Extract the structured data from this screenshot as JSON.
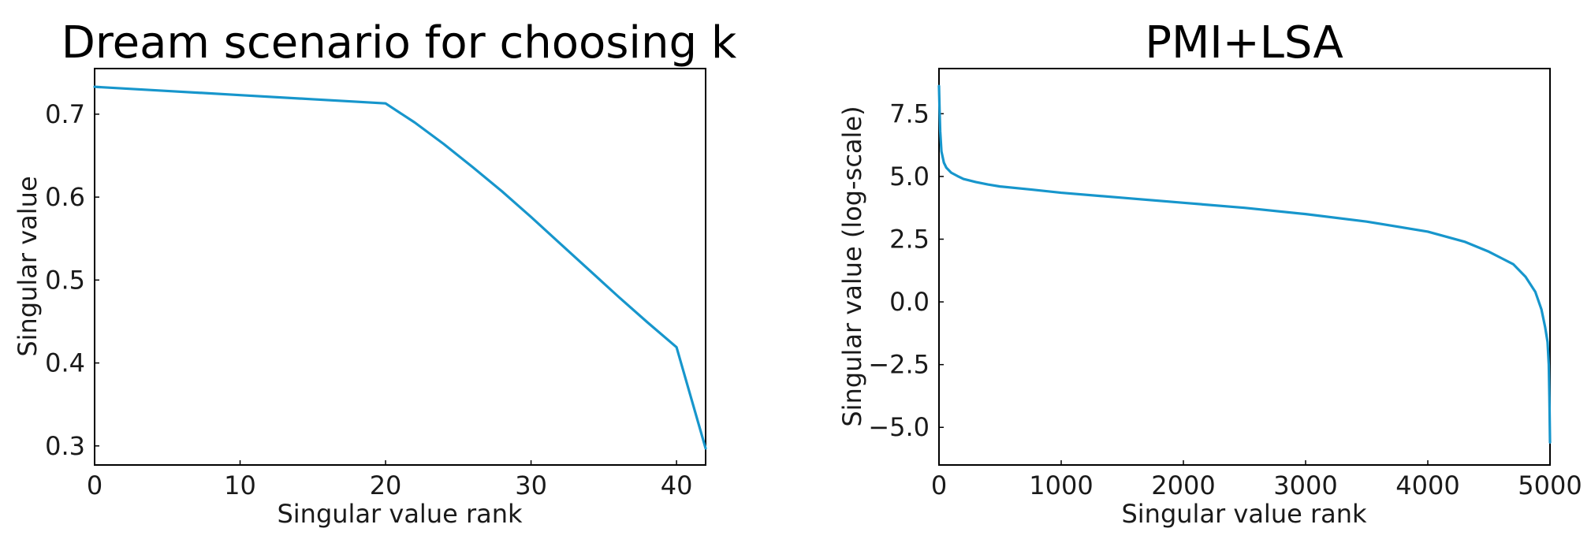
{
  "chart_data": [
    {
      "type": "line",
      "title": "Dream scenario for choosing k",
      "xlabel": "Singular value rank",
      "ylabel": "Singular value",
      "xlim": [
        0,
        42
      ],
      "ylim": [
        0.277,
        0.755
      ],
      "xticks": [
        0,
        10,
        20,
        30,
        40
      ],
      "yticks": [
        0.3,
        0.4,
        0.5,
        0.6,
        0.7
      ],
      "xtick_labels": [
        "0",
        "10",
        "20",
        "30",
        "40"
      ],
      "ytick_labels": [
        "0.3",
        "0.4",
        "0.5",
        "0.6",
        "0.7"
      ],
      "grid": false,
      "color": "#1796cc",
      "series": [
        {
          "x": [
            0,
            5,
            10,
            15,
            20,
            22,
            24,
            26,
            28,
            30,
            32,
            34,
            36,
            38,
            40,
            42
          ],
          "y": [
            0.733,
            0.728,
            0.723,
            0.718,
            0.713,
            0.69,
            0.664,
            0.636,
            0.607,
            0.576,
            0.544,
            0.512,
            0.48,
            0.449,
            0.419,
            0.297
          ]
        }
      ]
    },
    {
      "type": "line",
      "title": "PMI+LSA",
      "xlabel": "Singular value rank",
      "ylabel": "Singular value (log-scale)",
      "xlim": [
        0,
        5000
      ],
      "ylim": [
        -6.5,
        9.3
      ],
      "xticks": [
        0,
        1000,
        2000,
        3000,
        4000,
        5000
      ],
      "yticks": [
        7.5,
        5.0,
        2.5,
        0.0,
        -2.5,
        -5.0
      ],
      "xtick_labels": [
        "0",
        "1000",
        "2000",
        "3000",
        "4000",
        "5000"
      ],
      "ytick_labels": [
        "7.5",
        "5.0",
        "2.5",
        "0.0",
        "−2.5",
        "−5.0"
      ],
      "grid": false,
      "color": "#1796cc",
      "series": [
        {
          "x": [
            0,
            5,
            10,
            20,
            40,
            60,
            100,
            150,
            200,
            300,
            400,
            500,
            750,
            1000,
            1500,
            2000,
            2500,
            3000,
            3500,
            4000,
            4300,
            4500,
            4700,
            4800,
            4880,
            4930,
            4960,
            4980,
            4990,
            4995,
            5000
          ],
          "y": [
            8.6,
            7.6,
            6.8,
            6.0,
            5.55,
            5.35,
            5.15,
            5.02,
            4.9,
            4.78,
            4.68,
            4.6,
            4.48,
            4.35,
            4.15,
            3.95,
            3.75,
            3.5,
            3.2,
            2.8,
            2.4,
            2.0,
            1.5,
            1.0,
            0.4,
            -0.3,
            -1.0,
            -1.6,
            -2.5,
            -3.8,
            -5.6
          ]
        }
      ]
    }
  ]
}
